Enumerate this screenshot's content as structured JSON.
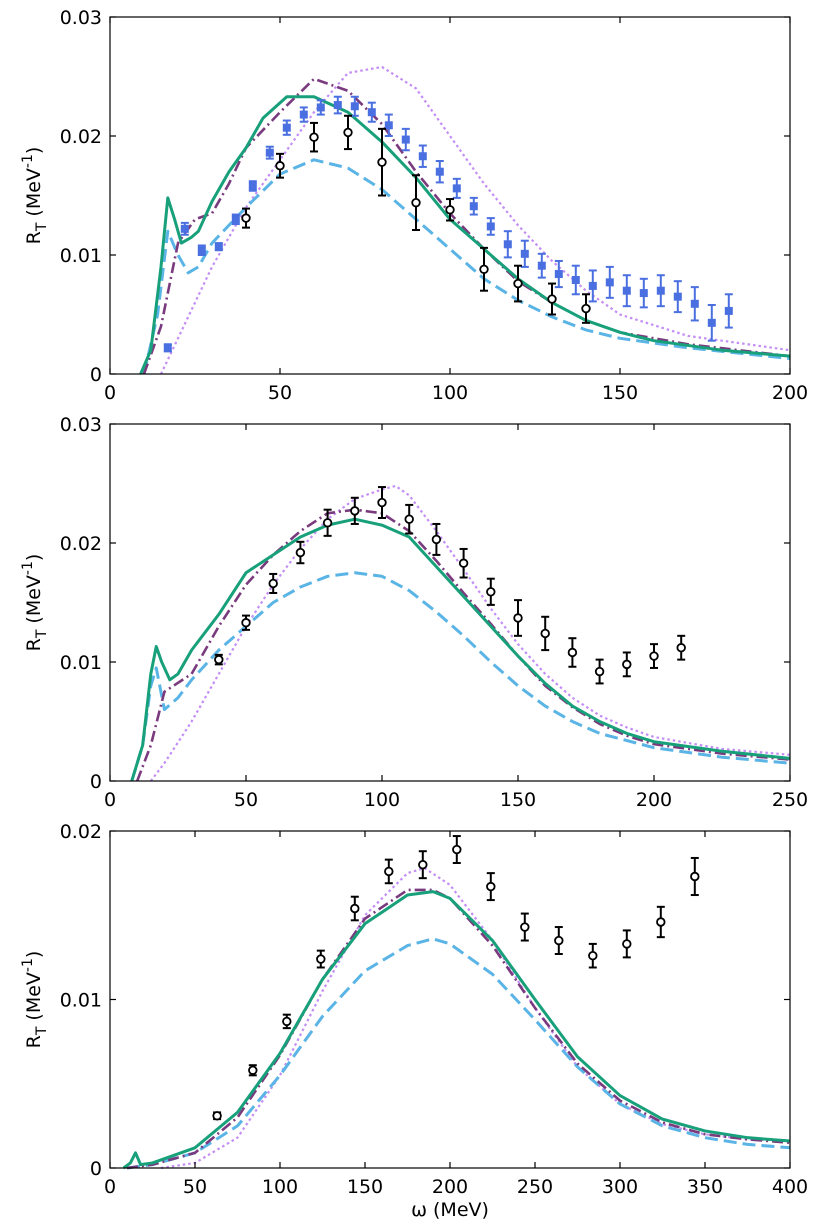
{
  "chart_data": [
    {
      "type": "line",
      "ylabel": {
        "symbol": "R",
        "subscript": "T",
        "unit": "(MeV",
        "exponent": "-1",
        "close": ")"
      },
      "xlim": [
        0,
        200
      ],
      "ylim": [
        0,
        0.03
      ],
      "xticks": [
        0,
        50,
        100,
        150,
        200
      ],
      "yticks": [
        0,
        0.01,
        0.02,
        0.03
      ],
      "series": [
        {
          "color": "#c38df5",
          "style": "dotted",
          "x": [
            15,
            20,
            25,
            30,
            40,
            50,
            60,
            70,
            80,
            90,
            100,
            110,
            120,
            130,
            140,
            150,
            170,
            200
          ],
          "values": [
            0,
            0.003,
            0.006,
            0.009,
            0.014,
            0.018,
            0.022,
            0.0253,
            0.0258,
            0.024,
            0.02,
            0.016,
            0.0125,
            0.0095,
            0.007,
            0.005,
            0.0032,
            0.002
          ]
        },
        {
          "color": "#5ab4e5",
          "style": "dashed",
          "x": [
            10,
            14,
            17,
            20,
            23,
            26,
            30,
            40,
            50,
            60,
            70,
            80,
            90,
            100,
            110,
            120,
            130,
            140,
            150,
            170,
            200
          ],
          "values": [
            0,
            0.005,
            0.012,
            0.01,
            0.0085,
            0.009,
            0.011,
            0.014,
            0.0168,
            0.018,
            0.0173,
            0.0155,
            0.013,
            0.0105,
            0.008,
            0.0062,
            0.0048,
            0.0037,
            0.003,
            0.0022,
            0.0013
          ]
        },
        {
          "color": "#7a3a7e",
          "style": "dashdot",
          "x": [
            10,
            15,
            20,
            25,
            30,
            35,
            40,
            50,
            60,
            70,
            80,
            90,
            100,
            110,
            120,
            130,
            140,
            150,
            170,
            200
          ],
          "values": [
            0,
            0.004,
            0.011,
            0.013,
            0.0135,
            0.016,
            0.019,
            0.022,
            0.0248,
            0.0238,
            0.021,
            0.017,
            0.0135,
            0.0105,
            0.0078,
            0.006,
            0.0045,
            0.0035,
            0.0025,
            0.0015
          ]
        },
        {
          "color": "#17a07a",
          "style": "solid",
          "x": [
            9,
            12,
            15,
            17,
            19,
            21,
            24,
            26,
            30,
            35,
            40,
            45,
            52,
            60,
            70,
            80,
            90,
            100,
            110,
            120,
            130,
            140,
            150,
            160,
            180,
            200
          ],
          "values": [
            0,
            0.002,
            0.009,
            0.0148,
            0.013,
            0.011,
            0.0115,
            0.012,
            0.0145,
            0.017,
            0.019,
            0.0215,
            0.0233,
            0.0233,
            0.022,
            0.0195,
            0.0165,
            0.013,
            0.0105,
            0.008,
            0.006,
            0.0045,
            0.0035,
            0.0028,
            0.002,
            0.0015
          ]
        },
        {
          "color": "#4a6fe0",
          "marker": "square",
          "x": [
            17,
            22,
            27,
            32,
            37,
            42,
            47,
            52,
            57,
            62,
            67,
            72,
            77,
            82,
            87,
            92,
            97,
            102,
            107,
            112,
            117,
            122,
            127,
            132,
            137,
            142,
            147,
            152,
            157,
            162,
            167,
            172,
            177,
            182
          ],
          "values": [
            0.0022,
            0.0122,
            0.0104,
            0.0107,
            0.013,
            0.0158,
            0.0186,
            0.0207,
            0.0218,
            0.0224,
            0.0226,
            0.0225,
            0.022,
            0.0209,
            0.0197,
            0.0183,
            0.017,
            0.0156,
            0.0141,
            0.0124,
            0.0109,
            0.0101,
            0.0091,
            0.0084,
            0.0079,
            0.0074,
            0.0077,
            0.007,
            0.0068,
            0.007,
            0.0065,
            0.0059,
            0.0043,
            0.0053
          ],
          "errors": [
            0.0003,
            0.0005,
            0.0004,
            0.0003,
            0.0004,
            0.0004,
            0.0005,
            0.0006,
            0.0006,
            0.0006,
            0.0007,
            0.0008,
            0.0008,
            0.0009,
            0.0009,
            0.0009,
            0.0009,
            0.0008,
            0.0007,
            0.0007,
            0.0011,
            0.0011,
            0.001,
            0.0011,
            0.0012,
            0.0013,
            0.0013,
            0.0013,
            0.0012,
            0.0013,
            0.0013,
            0.0014,
            0.0015,
            0.0014
          ]
        },
        {
          "color": "#000000",
          "marker": "circle",
          "x": [
            40,
            50,
            60,
            70,
            80,
            90,
            100,
            110,
            120,
            130,
            140
          ],
          "values": [
            0.0131,
            0.0175,
            0.0199,
            0.0203,
            0.0178,
            0.0144,
            0.0138,
            0.0088,
            0.0076,
            0.0063,
            0.0055
          ],
          "errors": [
            0.0008,
            0.001,
            0.0012,
            0.0014,
            0.0028,
            0.0023,
            0.0009,
            0.0018,
            0.0015,
            0.0013,
            0.0012
          ]
        }
      ]
    },
    {
      "type": "line",
      "ylabel": {
        "symbol": "R",
        "subscript": "T",
        "unit": "(MeV",
        "exponent": "-1",
        "close": ")"
      },
      "xlim": [
        0,
        250
      ],
      "ylim": [
        0,
        0.03
      ],
      "xticks": [
        0,
        50,
        100,
        150,
        200,
        250
      ],
      "yticks": [
        0,
        0.01,
        0.02,
        0.03
      ],
      "series": [
        {
          "color": "#c38df5",
          "style": "dotted",
          "x": [
            15,
            20,
            30,
            40,
            50,
            60,
            70,
            80,
            90,
            100,
            105,
            110,
            120,
            130,
            140,
            150,
            160,
            170,
            180,
            190,
            200,
            225,
            250
          ],
          "values": [
            0,
            0.0015,
            0.005,
            0.009,
            0.013,
            0.0165,
            0.0195,
            0.022,
            0.0237,
            0.0245,
            0.0248,
            0.024,
            0.021,
            0.0178,
            0.0145,
            0.0115,
            0.009,
            0.007,
            0.0055,
            0.0045,
            0.0037,
            0.0027,
            0.0022
          ]
        },
        {
          "color": "#5ab4e5",
          "style": "dashed",
          "x": [
            8,
            12,
            15,
            17,
            20,
            25,
            30,
            40,
            50,
            60,
            70,
            80,
            90,
            100,
            110,
            120,
            130,
            140,
            150,
            160,
            170,
            180,
            200,
            225,
            250
          ],
          "values": [
            0,
            0.003,
            0.008,
            0.0095,
            0.006,
            0.007,
            0.0085,
            0.011,
            0.013,
            0.015,
            0.0163,
            0.0172,
            0.0175,
            0.0172,
            0.016,
            0.0142,
            0.0122,
            0.01,
            0.008,
            0.0063,
            0.005,
            0.004,
            0.0028,
            0.002,
            0.0015
          ]
        },
        {
          "color": "#7a3a7e",
          "style": "dashdot",
          "x": [
            10,
            15,
            20,
            30,
            40,
            50,
            60,
            70,
            80,
            90,
            100,
            110,
            120,
            130,
            140,
            150,
            160,
            170,
            180,
            190,
            200,
            225,
            250
          ],
          "values": [
            0,
            0.003,
            0.0075,
            0.009,
            0.013,
            0.0165,
            0.019,
            0.021,
            0.0225,
            0.0228,
            0.0225,
            0.021,
            0.0185,
            0.0158,
            0.0132,
            0.0105,
            0.008,
            0.0062,
            0.0048,
            0.0038,
            0.0031,
            0.0023,
            0.0018
          ]
        },
        {
          "color": "#17a07a",
          "style": "solid",
          "x": [
            8,
            12,
            15,
            17,
            19,
            22,
            25,
            30,
            40,
            50,
            60,
            70,
            80,
            90,
            100,
            110,
            120,
            130,
            140,
            150,
            160,
            170,
            180,
            190,
            200,
            225,
            250
          ],
          "values": [
            0,
            0.003,
            0.009,
            0.0113,
            0.01,
            0.0085,
            0.009,
            0.011,
            0.014,
            0.0175,
            0.019,
            0.0205,
            0.0215,
            0.022,
            0.0215,
            0.0205,
            0.018,
            0.0155,
            0.013,
            0.0105,
            0.0082,
            0.0063,
            0.005,
            0.004,
            0.0033,
            0.0025,
            0.0019
          ]
        },
        {
          "color": "#000000",
          "marker": "circle",
          "x": [
            40,
            50,
            60,
            70,
            80,
            90,
            100,
            110,
            120,
            130,
            140,
            150,
            160,
            170,
            180,
            190,
            200,
            210
          ],
          "values": [
            0.0102,
            0.0133,
            0.0166,
            0.0192,
            0.0217,
            0.0227,
            0.0234,
            0.022,
            0.0203,
            0.0183,
            0.0159,
            0.0137,
            0.0124,
            0.0108,
            0.0092,
            0.0098,
            0.0105,
            0.0112
          ],
          "errors": [
            0.0004,
            0.0006,
            0.0008,
            0.0009,
            0.0011,
            0.0011,
            0.0013,
            0.0012,
            0.0013,
            0.0012,
            0.0011,
            0.0015,
            0.0014,
            0.0012,
            0.001,
            0.001,
            0.001,
            0.001
          ]
        }
      ]
    },
    {
      "type": "line",
      "ylabel": {
        "symbol": "R",
        "subscript": "T",
        "unit": "(MeV",
        "exponent": "-1",
        "close": ")"
      },
      "xlabel": "ω (MeV)",
      "xlim": [
        0,
        400
      ],
      "ylim": [
        0,
        0.02
      ],
      "xticks": [
        0,
        50,
        100,
        150,
        200,
        250,
        300,
        350,
        400
      ],
      "yticks": [
        0,
        0.01,
        0.02
      ],
      "series": [
        {
          "color": "#c38df5",
          "style": "dotted",
          "x": [
            30,
            50,
            75,
            100,
            125,
            150,
            175,
            185,
            200,
            225,
            250,
            275,
            300,
            325,
            350,
            375,
            400
          ],
          "values": [
            0,
            0.0003,
            0.0018,
            0.0055,
            0.0105,
            0.015,
            0.0175,
            0.0178,
            0.0168,
            0.0135,
            0.0095,
            0.006,
            0.0038,
            0.0026,
            0.002,
            0.0017,
            0.0016
          ]
        },
        {
          "color": "#5ab4e5",
          "style": "dashed",
          "x": [
            10,
            25,
            50,
            75,
            100,
            125,
            150,
            175,
            190,
            200,
            225,
            250,
            275,
            300,
            325,
            350,
            375,
            400
          ],
          "values": [
            0,
            0.0002,
            0.0009,
            0.0025,
            0.0055,
            0.009,
            0.0117,
            0.0132,
            0.0136,
            0.0133,
            0.0115,
            0.0088,
            0.006,
            0.0038,
            0.0025,
            0.0018,
            0.0014,
            0.0012
          ]
        },
        {
          "color": "#7a3a7e",
          "style": "dashdot",
          "x": [
            10,
            25,
            50,
            75,
            100,
            125,
            150,
            175,
            190,
            200,
            225,
            250,
            275,
            300,
            325,
            350,
            375,
            400
          ],
          "values": [
            0,
            0.0002,
            0.0009,
            0.003,
            0.0067,
            0.0112,
            0.0148,
            0.0165,
            0.0165,
            0.016,
            0.0132,
            0.0095,
            0.0062,
            0.004,
            0.0027,
            0.002,
            0.0017,
            0.0015
          ]
        },
        {
          "color": "#17a07a",
          "style": "solid",
          "x": [
            8,
            12,
            15,
            18,
            25,
            50,
            75,
            100,
            125,
            150,
            175,
            190,
            200,
            225,
            250,
            275,
            300,
            325,
            350,
            375,
            400
          ],
          "values": [
            0,
            0.0003,
            0.0009,
            0.0002,
            0.0003,
            0.0012,
            0.0033,
            0.0068,
            0.0112,
            0.0145,
            0.0162,
            0.0164,
            0.016,
            0.0135,
            0.01,
            0.0066,
            0.0043,
            0.0029,
            0.0022,
            0.0018,
            0.0016
          ]
        },
        {
          "color": "#000000",
          "marker": "circle",
          "x": [
            63,
            84,
            104,
            124,
            144,
            164,
            184,
            204,
            224,
            244,
            264,
            284,
            304,
            324,
            344
          ],
          "values": [
            0.0031,
            0.0058,
            0.0087,
            0.0124,
            0.0154,
            0.0176,
            0.018,
            0.0189,
            0.0167,
            0.0143,
            0.0135,
            0.0126,
            0.0133,
            0.0146,
            0.0173
          ],
          "errors": [
            0.0002,
            0.0003,
            0.0004,
            0.0005,
            0.0007,
            0.0007,
            0.0008,
            0.0008,
            0.0008,
            0.0008,
            0.0008,
            0.0007,
            0.0008,
            0.0009,
            0.0011
          ]
        }
      ]
    }
  ]
}
